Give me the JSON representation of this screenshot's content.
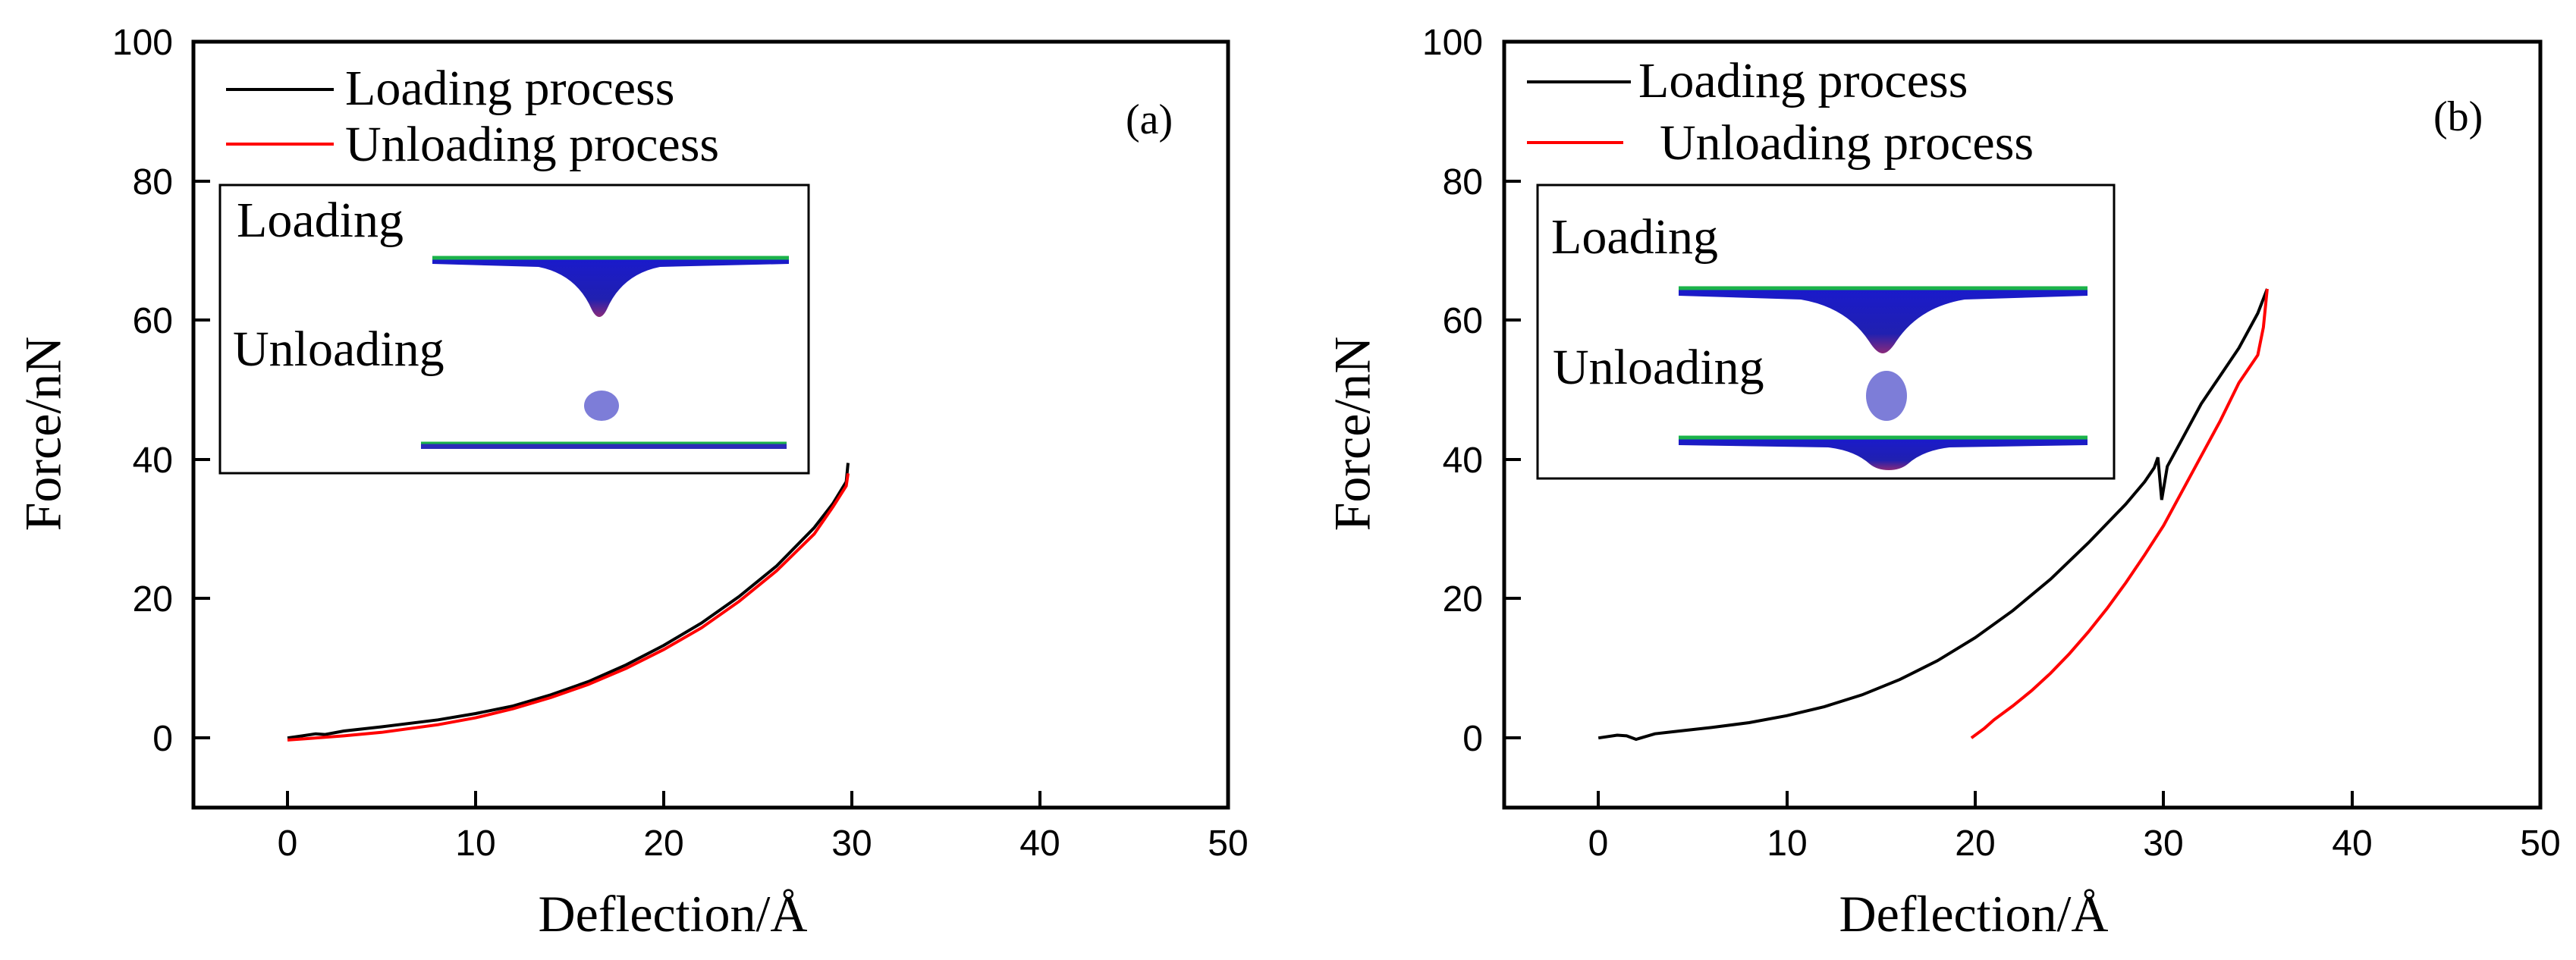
{
  "chart_data": [
    {
      "type": "line",
      "panel_label": "(a)",
      "xlabel": "Deflection/Å",
      "ylabel": "Force/nN",
      "xlim": [
        -5,
        50
      ],
      "ylim": [
        -10,
        100
      ],
      "xticks": [
        0,
        10,
        20,
        30,
        40,
        50
      ],
      "yticks": [
        0,
        20,
        40,
        60,
        80,
        100
      ],
      "legend_position": "top-left",
      "series": [
        {
          "name": "Loading process",
          "color": "#000000",
          "x": [
            0,
            0.8,
            1.5,
            2,
            3,
            5,
            8,
            10,
            12,
            14,
            16,
            18,
            20,
            22,
            24,
            26,
            28,
            29,
            29.7,
            29.8
          ],
          "y": [
            0,
            0.3,
            0.6,
            0.5,
            1.0,
            1.6,
            2.6,
            3.5,
            4.6,
            6.2,
            8.1,
            10.5,
            13.3,
            16.5,
            20.3,
            24.7,
            30.2,
            33.7,
            36.8,
            39.5
          ]
        },
        {
          "name": "Unloading process",
          "color": "#ff0000",
          "x": [
            29.8,
            29.7,
            29,
            28,
            26,
            24,
            22,
            20,
            18,
            16,
            14,
            12,
            10,
            8,
            5,
            3,
            1,
            0
          ],
          "y": [
            38.0,
            36.2,
            33.2,
            29.3,
            24.0,
            19.6,
            15.8,
            12.7,
            10.0,
            7.7,
            5.8,
            4.2,
            2.9,
            1.9,
            0.8,
            0.3,
            -0.1,
            -0.3
          ]
        }
      ],
      "inset": {
        "loading_label": "Loading",
        "unloading_label": "Unloading"
      }
    },
    {
      "type": "line",
      "panel_label": "(b)",
      "xlabel": "Deflection/Å",
      "ylabel": "Force/nN",
      "xlim": [
        -5,
        50
      ],
      "ylim": [
        -10,
        100
      ],
      "xticks": [
        0,
        10,
        20,
        30,
        40,
        50
      ],
      "yticks": [
        0,
        20,
        40,
        60,
        80,
        100
      ],
      "legend_position": "top-left",
      "series": [
        {
          "name": "Loading process",
          "color": "#000000",
          "x": [
            0,
            1,
            1.5,
            2,
            3,
            4,
            6,
            8,
            10,
            12,
            14,
            16,
            18,
            20,
            22,
            24,
            26,
            28,
            29,
            29.5,
            29.7,
            29.9,
            30.2,
            31,
            32,
            33,
            34,
            35,
            35.5
          ],
          "y": [
            0,
            0.4,
            0.3,
            -0.2,
            0.6,
            0.9,
            1.5,
            2.2,
            3.2,
            4.5,
            6.2,
            8.4,
            11.1,
            14.4,
            18.3,
            22.8,
            28.0,
            33.6,
            36.8,
            38.8,
            40.3,
            34.2,
            39.0,
            43.0,
            48.0,
            52.0,
            56.0,
            61.0,
            64.5
          ]
        },
        {
          "name": "Unloading process",
          "color": "#ff0000",
          "x": [
            35.5,
            35.3,
            35,
            34,
            33,
            32,
            31,
            30,
            29,
            28,
            27,
            26,
            25,
            24,
            23,
            22,
            21,
            20.5,
            19.8
          ],
          "y": [
            64.5,
            59.0,
            55.0,
            51.0,
            45.5,
            40.5,
            35.5,
            30.5,
            26.3,
            22.3,
            18.6,
            15.2,
            12.1,
            9.3,
            6.8,
            4.6,
            2.6,
            1.4,
            0
          ]
        }
      ],
      "inset": {
        "loading_label": "Loading",
        "unloading_label": "Unloading"
      }
    }
  ]
}
